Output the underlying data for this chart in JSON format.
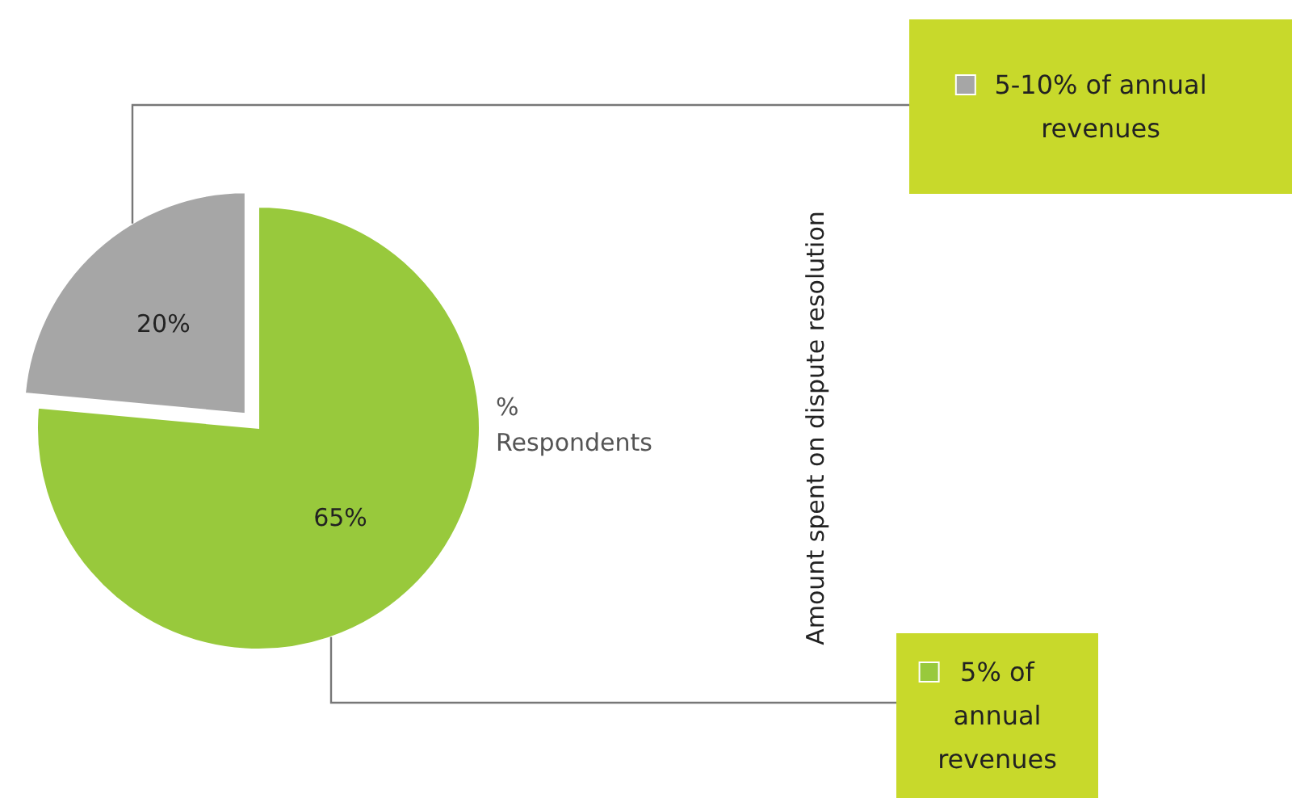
{
  "chart_data": {
    "type": "pie",
    "categories": [
      "5% of annual revenues",
      "5-10% of annual revenues"
    ],
    "values": [
      65,
      20
    ],
    "colors": [
      "#98c93c",
      "#a6a6a6"
    ],
    "legend": "right",
    "value_labels": [
      "65%",
      "20%"
    ],
    "annotations": [
      "% Respondents",
      "Amount spent on dispute resolution"
    ]
  }
}
